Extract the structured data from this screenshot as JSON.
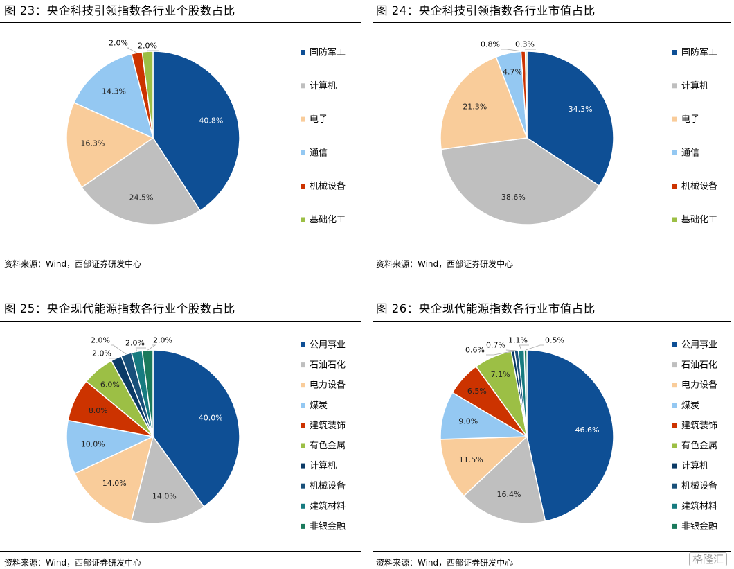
{
  "panels": [
    {
      "title": "图 23：央企科技引领指数各行业个股数占比",
      "source": "资料来源：Wind，西部证券研发中心"
    },
    {
      "title": "图 24：央企科技引领指数各行业市值占比",
      "source": "资料来源：Wind，西部证券研发中心"
    },
    {
      "title": "图 25：央企现代能源指数各行业个股数占比",
      "source": "资料来源：Wind，西部证券研发中心"
    },
    {
      "title": "图 26：央企现代能源指数各行业市值占比",
      "source": "资料来源：Wind，西部证券研发中心"
    }
  ],
  "watermark": "格隆汇",
  "chart_data": [
    {
      "type": "pie",
      "title": "图 23：央企科技引领指数各行业个股数占比",
      "categories": [
        "国防军工",
        "计算机",
        "电子",
        "通信",
        "机械设备",
        "基础化工"
      ],
      "values": [
        40.8,
        24.5,
        16.3,
        14.3,
        2.0,
        2.0
      ],
      "labels": [
        "40.8%",
        "24.5%",
        "16.3%",
        "14.3%",
        "2.0%",
        "2.0%"
      ],
      "colors": [
        "#0e4f95",
        "#bfbfbf",
        "#f9cc9a",
        "#94c8f2",
        "#cc3300",
        "#9cbf45"
      ],
      "legend": "right"
    },
    {
      "type": "pie",
      "title": "图 24：央企科技引领指数各行业市值占比",
      "categories": [
        "国防军工",
        "计算机",
        "电子",
        "通信",
        "机械设备",
        "基础化工"
      ],
      "values": [
        34.3,
        38.6,
        21.3,
        4.7,
        0.8,
        0.3
      ],
      "labels": [
        "34.3%",
        "38.6%",
        "21.3%",
        "4.7%",
        "0.8%",
        "0.3%"
      ],
      "colors": [
        "#0e4f95",
        "#bfbfbf",
        "#f9cc9a",
        "#94c8f2",
        "#cc3300",
        "#9cbf45"
      ],
      "legend": "right"
    },
    {
      "type": "pie",
      "title": "图 25：央企现代能源指数各行业个股数占比",
      "categories": [
        "公用事业",
        "石油石化",
        "电力设备",
        "煤炭",
        "建筑装饰",
        "有色金属",
        "计算机",
        "机械设备",
        "建筑材料",
        "非银金融"
      ],
      "values": [
        40.0,
        14.0,
        14.0,
        10.0,
        8.0,
        6.0,
        2.0,
        2.0,
        2.0,
        2.0
      ],
      "labels": [
        "40.0%",
        "14.0%",
        "14.0%",
        "10.0%",
        "8.0%",
        "6.0%",
        "2.0%",
        "2.0%",
        "2.0%",
        "2.0%"
      ],
      "colors": [
        "#0e4f95",
        "#bfbfbf",
        "#f9cc9a",
        "#94c8f2",
        "#cc3300",
        "#9cbf45",
        "#0b3a66",
        "#19507a",
        "#177b80",
        "#1b7a5c"
      ],
      "legend": "right"
    },
    {
      "type": "pie",
      "title": "图 26：央企现代能源指数各行业市值占比",
      "categories": [
        "公用事业",
        "石油石化",
        "电力设备",
        "煤炭",
        "建筑装饰",
        "有色金属",
        "计算机",
        "机械设备",
        "建筑材料",
        "非银金融"
      ],
      "values": [
        46.6,
        16.4,
        11.5,
        9.0,
        6.5,
        7.1,
        0.6,
        0.7,
        1.1,
        0.5
      ],
      "labels": [
        "46.6%",
        "16.4%",
        "11.5%",
        "9.0%",
        "6.5%",
        "7.1%",
        "0.6%",
        "0.7%",
        "1.1%",
        "0.5%"
      ],
      "colors": [
        "#0e4f95",
        "#bfbfbf",
        "#f9cc9a",
        "#94c8f2",
        "#cc3300",
        "#9cbf45",
        "#0b3a66",
        "#19507a",
        "#177b80",
        "#1b7a5c"
      ],
      "legend": "right"
    }
  ]
}
